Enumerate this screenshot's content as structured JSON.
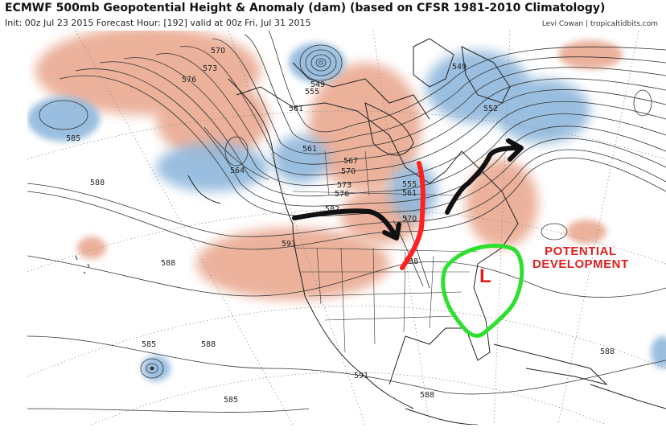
{
  "header": {
    "title": "ECMWF 500mb Geopotential Height & Anomaly (dam) (based on CFSR 1981-2010 Climatology)",
    "subtitle": "Init: 00z Jul 23 2015   Forecast Hour: [192]   valid at 00z Fri, Jul 31 2015",
    "credit": "Levi Cowan | tropicaltidbits.com"
  },
  "contour_labels": [
    {
      "text": "570"
    },
    {
      "text": "576"
    },
    {
      "text": "573"
    },
    {
      "text": "549"
    },
    {
      "text": "555"
    },
    {
      "text": "561"
    },
    {
      "text": "549"
    },
    {
      "text": "552"
    },
    {
      "text": "585"
    },
    {
      "text": "561"
    },
    {
      "text": "564"
    },
    {
      "text": "588"
    },
    {
      "text": "567"
    },
    {
      "text": "570"
    },
    {
      "text": "573"
    },
    {
      "text": "576"
    },
    {
      "text": "582"
    },
    {
      "text": "555"
    },
    {
      "text": "561"
    },
    {
      "text": "570"
    },
    {
      "text": "591"
    },
    {
      "text": "588"
    },
    {
      "text": "588"
    },
    {
      "text": "585"
    },
    {
      "text": "588"
    },
    {
      "text": "591"
    },
    {
      "text": "585"
    },
    {
      "text": "588"
    },
    {
      "text": "588"
    }
  ],
  "annotations": {
    "potential_development": "POTENTIAL\nDEVELOPMENT",
    "low_marker": "L"
  },
  "colors": {
    "positive_anomaly": "#e8a48a",
    "negative_anomaly": "#8fb7dc",
    "contour": "#333333",
    "trough_line": "#ff2020",
    "flow_arrow": "#111111",
    "development_circle": "#2ee02e",
    "annotation_text": "#e01e1e"
  }
}
